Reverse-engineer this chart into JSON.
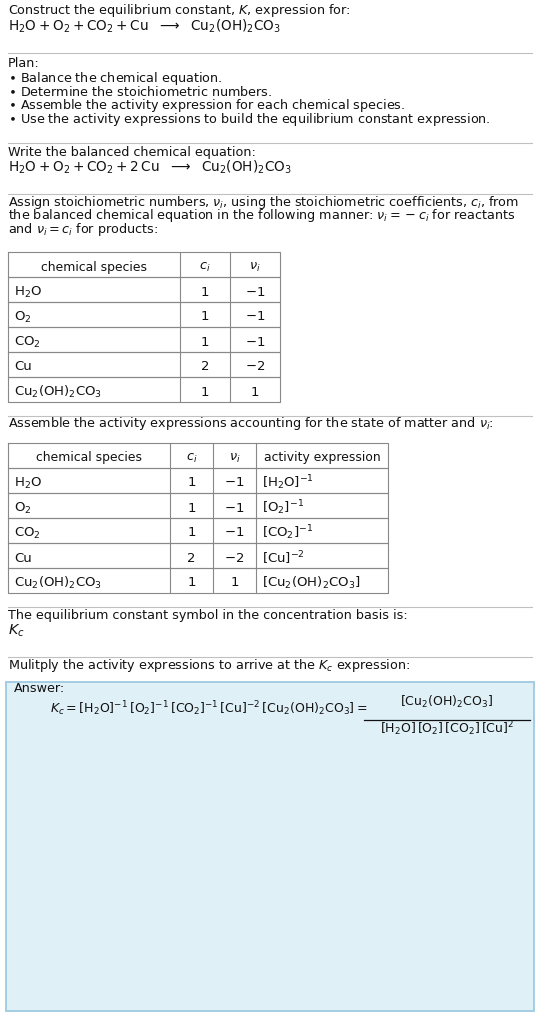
{
  "bg_color": "#ffffff",
  "text_color": "#000000",
  "answer_box_color": "#dff0f7",
  "answer_box_edge": "#9ecae1",
  "table1_rows": [
    [
      "$\\mathrm{H_2O}$",
      "1",
      "$-1$"
    ],
    [
      "$\\mathrm{O_2}$",
      "1",
      "$-1$"
    ],
    [
      "$\\mathrm{CO_2}$",
      "1",
      "$-1$"
    ],
    [
      "Cu",
      "2",
      "$-2$"
    ],
    [
      "$\\mathrm{Cu_2(OH)_2CO_3}$",
      "1",
      "1"
    ]
  ],
  "table2_rows": [
    [
      "$\\mathrm{H_2O}$",
      "1",
      "$-1$",
      "$[\\mathrm{H_2O}]^{-1}$"
    ],
    [
      "$\\mathrm{O_2}$",
      "1",
      "$-1$",
      "$[\\mathrm{O_2}]^{-1}$"
    ],
    [
      "$\\mathrm{CO_2}$",
      "1",
      "$-1$",
      "$[\\mathrm{CO_2}]^{-1}$"
    ],
    [
      "Cu",
      "2",
      "$-2$",
      "$[\\mathrm{Cu}]^{-2}$"
    ],
    [
      "$\\mathrm{Cu_2(OH)_2CO_3}$",
      "1",
      "1",
      "$[\\mathrm{Cu_2(OH)_2CO_3}]$"
    ]
  ]
}
